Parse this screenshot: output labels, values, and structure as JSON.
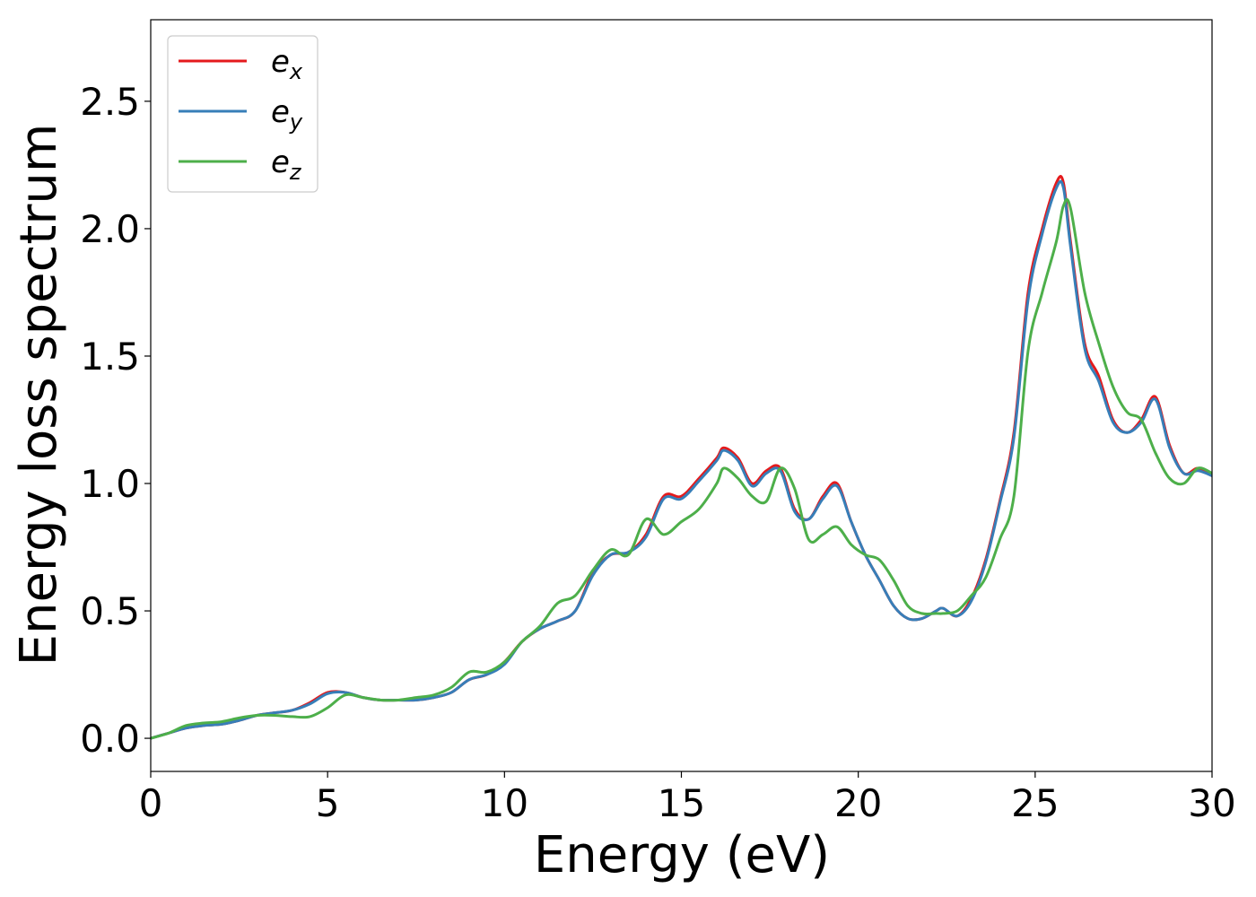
{
  "chart_data": {
    "type": "line",
    "xlabel": "Energy (eV)",
    "ylabel": "Energy loss spectrum",
    "xlim": [
      0,
      30
    ],
    "ylim": [
      -0.13,
      2.82
    ],
    "xticks": [
      0,
      5,
      10,
      15,
      20,
      25,
      30
    ],
    "xtick_labels": [
      "0",
      "5",
      "10",
      "15",
      "20",
      "25",
      "30"
    ],
    "yticks": [
      0.0,
      0.5,
      1.0,
      1.5,
      2.0,
      2.5
    ],
    "ytick_labels": [
      "0.0",
      "0.5",
      "1.0",
      "1.5",
      "2.0",
      "2.5"
    ],
    "grid": false,
    "legend_position": "top-left",
    "series": [
      {
        "name": "e_x",
        "label_base": "e",
        "label_sub": "x",
        "color": "#e41a1c",
        "x": [
          0,
          0.5,
          1,
          1.5,
          2,
          2.5,
          3,
          3.5,
          4,
          4.5,
          5,
          5.5,
          6,
          6.5,
          7,
          7.5,
          8,
          8.5,
          9,
          9.5,
          10,
          10.5,
          11,
          11.5,
          12,
          12.5,
          13,
          13.5,
          14,
          14.5,
          15,
          15.5,
          16,
          16.2,
          16.6,
          17,
          17.4,
          17.8,
          18.2,
          18.6,
          19,
          19.4,
          19.8,
          20.2,
          20.6,
          21,
          21.4,
          21.8,
          22.2,
          22.4,
          22.8,
          23.2,
          23.6,
          24,
          24.4,
          24.8,
          25.2,
          25.6,
          25.8,
          26,
          26.4,
          26.8,
          27.2,
          27.6,
          28,
          28.4,
          28.8,
          29.2,
          29.6,
          30
        ],
        "values": [
          0,
          0.02,
          0.04,
          0.05,
          0.055,
          0.07,
          0.09,
          0.1,
          0.11,
          0.14,
          0.18,
          0.18,
          0.16,
          0.15,
          0.15,
          0.15,
          0.16,
          0.18,
          0.23,
          0.25,
          0.3,
          0.38,
          0.43,
          0.46,
          0.5,
          0.65,
          0.72,
          0.73,
          0.8,
          0.95,
          0.95,
          1.02,
          1.1,
          1.14,
          1.1,
          1.0,
          1.05,
          1.06,
          0.9,
          0.86,
          0.95,
          1.0,
          0.85,
          0.72,
          0.62,
          0.52,
          0.47,
          0.47,
          0.5,
          0.51,
          0.48,
          0.55,
          0.7,
          0.93,
          1.2,
          1.75,
          2.0,
          2.18,
          2.18,
          1.95,
          1.55,
          1.42,
          1.25,
          1.2,
          1.25,
          1.34,
          1.15,
          1.04,
          1.06,
          1.03
        ]
      },
      {
        "name": "e_y",
        "label_base": "e",
        "label_sub": "y",
        "color": "#377eb8",
        "x": [
          0,
          0.5,
          1,
          1.5,
          2,
          2.5,
          3,
          3.5,
          4,
          4.5,
          5,
          5.5,
          6,
          6.5,
          7,
          7.5,
          8,
          8.5,
          9,
          9.5,
          10,
          10.5,
          11,
          11.5,
          12,
          12.5,
          13,
          13.5,
          14,
          14.5,
          15,
          15.5,
          16,
          16.2,
          16.6,
          17,
          17.4,
          17.8,
          18.2,
          18.6,
          19,
          19.4,
          19.8,
          20.2,
          20.6,
          21,
          21.4,
          21.8,
          22.2,
          22.4,
          22.8,
          23.2,
          23.6,
          24,
          24.4,
          24.8,
          25.2,
          25.6,
          25.8,
          26,
          26.4,
          26.8,
          27.2,
          27.6,
          28,
          28.4,
          28.8,
          29.2,
          29.6,
          30
        ],
        "values": [
          0,
          0.02,
          0.04,
          0.05,
          0.055,
          0.07,
          0.09,
          0.1,
          0.11,
          0.135,
          0.175,
          0.18,
          0.16,
          0.15,
          0.15,
          0.15,
          0.16,
          0.18,
          0.23,
          0.25,
          0.29,
          0.38,
          0.43,
          0.46,
          0.5,
          0.64,
          0.72,
          0.73,
          0.79,
          0.94,
          0.94,
          1.01,
          1.09,
          1.13,
          1.09,
          0.99,
          1.04,
          1.05,
          0.89,
          0.86,
          0.94,
          0.99,
          0.85,
          0.72,
          0.62,
          0.52,
          0.47,
          0.47,
          0.5,
          0.51,
          0.48,
          0.54,
          0.69,
          0.92,
          1.18,
          1.72,
          1.98,
          2.16,
          2.16,
          1.93,
          1.53,
          1.4,
          1.24,
          1.2,
          1.24,
          1.33,
          1.14,
          1.04,
          1.05,
          1.03
        ]
      },
      {
        "name": "e_z",
        "label_base": "e",
        "label_sub": "z",
        "color": "#4daf4a",
        "x": [
          0,
          0.5,
          1,
          1.5,
          2,
          2.5,
          3,
          3.5,
          4,
          4.5,
          5,
          5.5,
          6,
          6.5,
          7,
          7.5,
          8,
          8.5,
          9,
          9.5,
          10,
          10.5,
          11,
          11.5,
          12,
          12.5,
          13,
          13.5,
          14,
          14.5,
          15,
          15.5,
          16,
          16.2,
          16.6,
          17,
          17.4,
          17.8,
          18.2,
          18.6,
          19,
          19.4,
          19.8,
          20.2,
          20.6,
          21,
          21.4,
          21.8,
          22.2,
          22.4,
          22.8,
          23.2,
          23.6,
          24,
          24.4,
          24.8,
          25.2,
          25.6,
          25.8,
          26,
          26.4,
          26.8,
          27.2,
          27.6,
          28,
          28.4,
          28.8,
          29.2,
          29.6,
          30
        ],
        "values": [
          0,
          0.02,
          0.05,
          0.06,
          0.065,
          0.08,
          0.09,
          0.09,
          0.085,
          0.085,
          0.12,
          0.17,
          0.16,
          0.15,
          0.15,
          0.16,
          0.17,
          0.2,
          0.26,
          0.26,
          0.3,
          0.38,
          0.44,
          0.53,
          0.56,
          0.66,
          0.74,
          0.72,
          0.86,
          0.8,
          0.85,
          0.9,
          1.0,
          1.06,
          1.02,
          0.95,
          0.93,
          1.06,
          0.98,
          0.78,
          0.8,
          0.83,
          0.76,
          0.72,
          0.7,
          0.62,
          0.52,
          0.49,
          0.49,
          0.49,
          0.5,
          0.56,
          0.63,
          0.78,
          0.95,
          1.52,
          1.75,
          1.95,
          2.09,
          2.08,
          1.75,
          1.55,
          1.38,
          1.28,
          1.25,
          1.12,
          1.02,
          1.0,
          1.06,
          1.04
        ]
      }
    ]
  }
}
